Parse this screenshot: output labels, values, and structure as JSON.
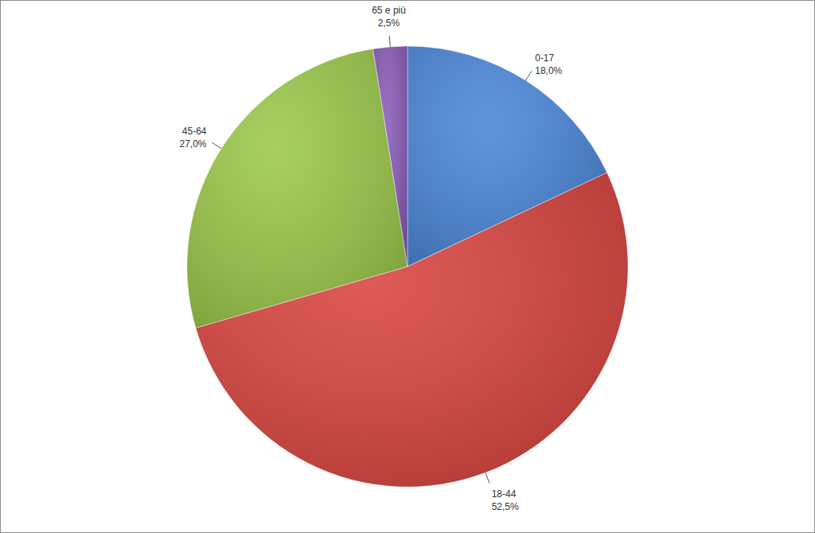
{
  "chart_data": {
    "type": "pie",
    "categories": [
      "0-17",
      "18-44",
      "45-64",
      "65 e più"
    ],
    "values": [
      18.0,
      52.5,
      27.0,
      2.5
    ],
    "value_labels": [
      "18,0%",
      "52,5%",
      "27,0%",
      "2,5%"
    ],
    "colors": [
      "#4a86d8",
      "#d9443f",
      "#9bc84a",
      "#8a5cb8"
    ],
    "data_labels": true
  }
}
